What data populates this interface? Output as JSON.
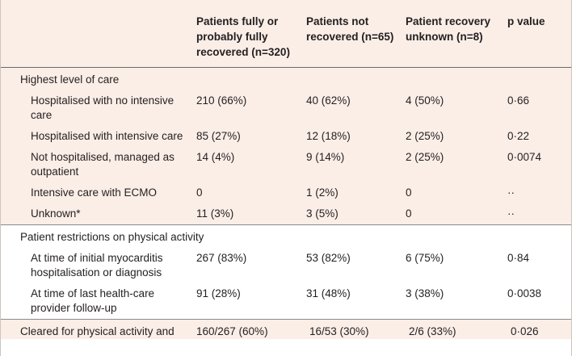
{
  "headers": [
    "",
    "Patients fully or probably fully recovered (n=320)",
    "Patients not recovered (n=65)",
    "Patient recovery unknown (n=8)",
    "p value"
  ],
  "groups": [
    {
      "label": "Highest level of care",
      "rows": [
        {
          "label": "Hospitalised with no intensive care",
          "v1": "210 (66%)",
          "v2": "40 (62%)",
          "v3": "4 (50%)",
          "p": "0·66"
        },
        {
          "label": "Hospitalised with intensive care",
          "v1": "85 (27%)",
          "v2": "12 (18%)",
          "v3": "2 (25%)",
          "p": "0·22"
        },
        {
          "label": "Not hospitalised, managed as outpatient",
          "v1": "14 (4%)",
          "v2": "9 (14%)",
          "v3": "2 (25%)",
          "p": "0·0074"
        },
        {
          "label": "Intensive care with ECMO",
          "v1": "0",
          "v2": "1 (2%)",
          "v3": "0",
          "p": "··"
        },
        {
          "label": "Unknown*",
          "v1": "11 (3%)",
          "v2": "3 (5%)",
          "v3": "0",
          "p": "··"
        }
      ]
    },
    {
      "label": "Patient restrictions on physical activity",
      "rows": [
        {
          "label": "At time of initial myocarditis hospitalisation or diagnosis",
          "v1": "267 (83%)",
          "v2": "53 (82%)",
          "v3": "6 (75%)",
          "p": "0·84"
        },
        {
          "label": "At time of last health-care provider follow-up",
          "v1": "91 (28%)",
          "v2": "31 (48%)",
          "v3": "3 (38%)",
          "p": "0·0038"
        }
      ]
    }
  ],
  "last_row": {
    "label": "Cleared for physical activity and",
    "v1": "160/267 (60%)",
    "v2": "16/53 (30%)",
    "v3": "2/6 (33%)",
    "p": "0·026"
  }
}
